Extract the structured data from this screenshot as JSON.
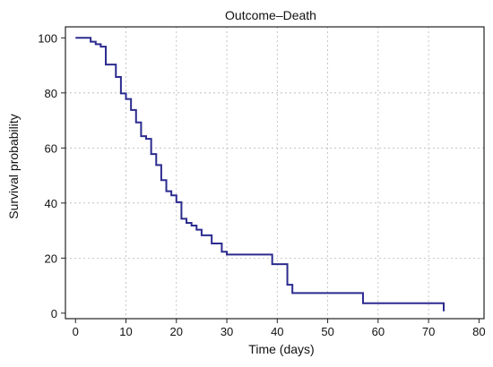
{
  "chart_data": {
    "type": "line",
    "title": "Outcome–Death",
    "xlabel": "Time (days)",
    "ylabel": "Survival probability",
    "xlim": [
      -2,
      81
    ],
    "ylim": [
      -2,
      104
    ],
    "xticks": [
      0,
      10,
      20,
      30,
      40,
      50,
      60,
      70,
      80
    ],
    "yticks": [
      0,
      20,
      40,
      60,
      80,
      100
    ],
    "grid": true,
    "line_color": "#2b2b8f",
    "series": [
      {
        "x": [
          0,
          3,
          4,
          5,
          6,
          7,
          8,
          9,
          10,
          11,
          12,
          13,
          14,
          15,
          16,
          17,
          18,
          19,
          20,
          21,
          22,
          23,
          24,
          25,
          27,
          29,
          30,
          39,
          42,
          43,
          57,
          73
        ],
        "y": [
          100,
          98.6,
          97.7,
          96.8,
          90.3,
          90.3,
          85.8,
          79.8,
          77.8,
          73.8,
          69.3,
          64.3,
          63.3,
          57.8,
          53.8,
          48.3,
          44.3,
          42.8,
          40.3,
          34.3,
          32.8,
          31.8,
          30.3,
          28.3,
          25.3,
          22.3,
          21.3,
          17.8,
          10.3,
          7.3,
          3.6,
          0.7
        ]
      }
    ]
  }
}
